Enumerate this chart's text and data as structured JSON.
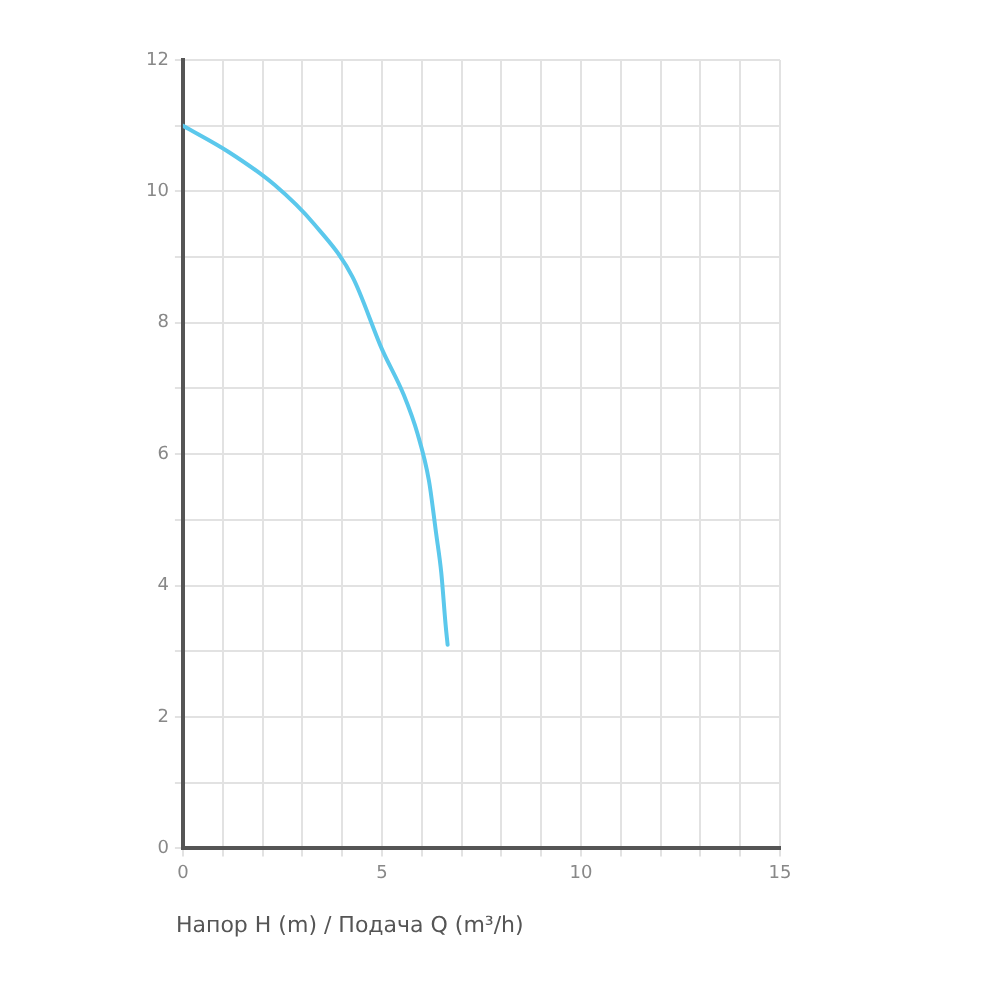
{
  "chart_data": {
    "type": "line",
    "xlabel": "Напор H (m) / Подача Q (m³/h)",
    "x": [
      0,
      1.15,
      2.3,
      3.3,
      4.26,
      5,
      5.55,
      5.9,
      6.18,
      6.36,
      6.49,
      6.6,
      6.65
    ],
    "series": [
      {
        "color": "#5bc8ec",
        "values": [
          11.0,
          10.6,
          10.1,
          9.5,
          8.7,
          7.6,
          6.9,
          6.3,
          5.6,
          4.8,
          4.2,
          3.4,
          3.1
        ]
      }
    ],
    "xlim": [
      0,
      15
    ],
    "xticks": [
      0,
      {
        "value": 1,
        "label": null
      },
      {
        "value": 2,
        "label": null
      },
      {
        "value": 3,
        "label": null
      },
      {
        "value": 4,
        "label": null
      },
      5,
      {
        "value": 6,
        "label": null
      },
      {
        "value": 7,
        "label": null
      },
      {
        "value": 8,
        "label": null
      },
      {
        "value": 9,
        "label": null
      },
      10,
      {
        "value": 11,
        "label": null
      },
      {
        "value": 12,
        "label": null
      },
      {
        "value": 13,
        "label": null
      },
      {
        "value": 14,
        "label": null
      },
      15
    ],
    "ylim": [
      0,
      12
    ],
    "yticks": [
      0,
      {
        "value": 1,
        "label": null
      },
      2,
      {
        "value": 3,
        "label": null
      },
      4,
      {
        "value": 5,
        "label": null
      },
      6,
      {
        "value": 7,
        "label": null
      },
      8,
      {
        "value": 9,
        "label": null
      },
      10,
      {
        "value": 11,
        "label": null
      },
      12
    ],
    "grid": true,
    "marker": "none",
    "line_style": "solid"
  }
}
